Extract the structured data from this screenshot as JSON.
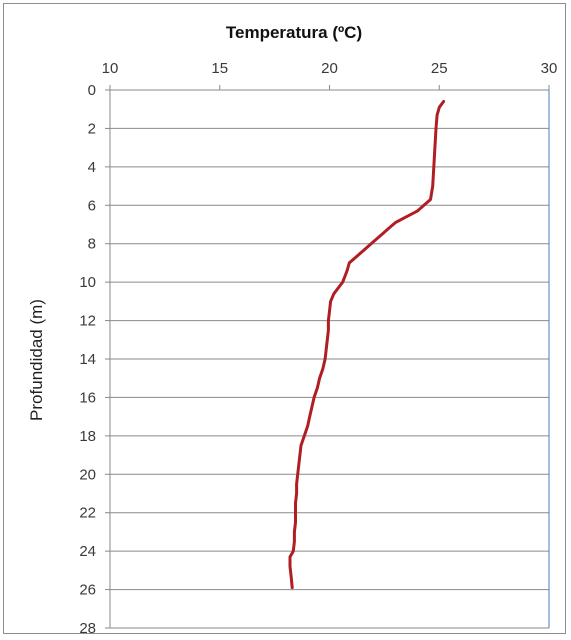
{
  "chart_data": {
    "type": "line",
    "title": "Temperatura (ºC)",
    "xlabel": "",
    "ylabel": "Profundidad (m)",
    "x_axis_position": "top",
    "y_axis_inverted": true,
    "xlim": [
      10,
      30
    ],
    "ylim": [
      0,
      28
    ],
    "x_ticks": [
      "10",
      "15",
      "20",
      "25",
      "30"
    ],
    "y_ticks": [
      "0",
      "2",
      "4",
      "6",
      "8",
      "10",
      "12",
      "14",
      "16",
      "18",
      "20",
      "22",
      "24",
      "26",
      "28"
    ],
    "grid": "horizontal",
    "legend": "none",
    "series": [
      {
        "color": "#b01e23",
        "points": [
          [
            25.2,
            0.6
          ],
          [
            25.0,
            0.9
          ],
          [
            24.9,
            1.3
          ],
          [
            24.85,
            2.0
          ],
          [
            24.8,
            3.0
          ],
          [
            24.75,
            4.0
          ],
          [
            24.7,
            5.0
          ],
          [
            24.6,
            5.7
          ],
          [
            24.3,
            6.0
          ],
          [
            24.0,
            6.3
          ],
          [
            23.5,
            6.6
          ],
          [
            23.0,
            6.9
          ],
          [
            22.7,
            7.2
          ],
          [
            22.4,
            7.5
          ],
          [
            22.0,
            7.9
          ],
          [
            21.6,
            8.3
          ],
          [
            21.2,
            8.7
          ],
          [
            20.9,
            9.0
          ],
          [
            20.8,
            9.4
          ],
          [
            20.7,
            9.7
          ],
          [
            20.6,
            10.0
          ],
          [
            20.4,
            10.3
          ],
          [
            20.2,
            10.6
          ],
          [
            20.05,
            11.0
          ],
          [
            20.0,
            11.5
          ],
          [
            19.95,
            12.0
          ],
          [
            19.95,
            12.5
          ],
          [
            19.9,
            13.0
          ],
          [
            19.85,
            13.5
          ],
          [
            19.8,
            14.0
          ],
          [
            19.7,
            14.5
          ],
          [
            19.55,
            15.0
          ],
          [
            19.45,
            15.5
          ],
          [
            19.3,
            16.0
          ],
          [
            19.2,
            16.5
          ],
          [
            19.1,
            17.0
          ],
          [
            19.0,
            17.5
          ],
          [
            18.85,
            18.0
          ],
          [
            18.7,
            18.5
          ],
          [
            18.65,
            19.0
          ],
          [
            18.6,
            19.5
          ],
          [
            18.55,
            20.0
          ],
          [
            18.5,
            20.5
          ],
          [
            18.5,
            21.0
          ],
          [
            18.45,
            21.5
          ],
          [
            18.45,
            22.0
          ],
          [
            18.45,
            22.5
          ],
          [
            18.4,
            23.0
          ],
          [
            18.4,
            23.5
          ],
          [
            18.35,
            24.0
          ],
          [
            18.2,
            24.3
          ],
          [
            18.2,
            24.8
          ],
          [
            18.25,
            25.3
          ],
          [
            18.3,
            25.9
          ]
        ]
      }
    ]
  }
}
